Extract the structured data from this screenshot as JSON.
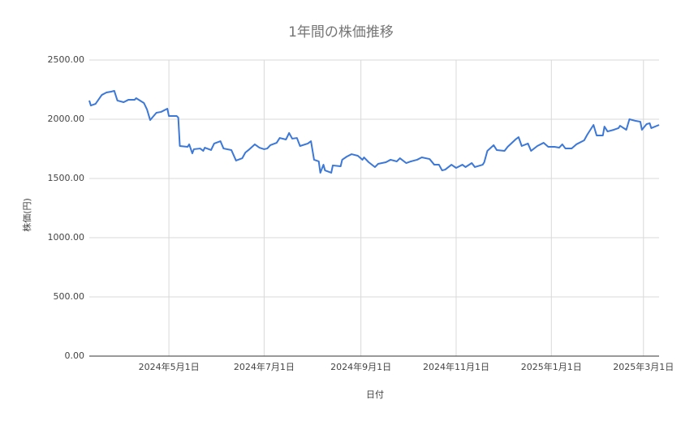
{
  "chart_data": {
    "type": "line",
    "title": "1年間の株価推移",
    "x_label": "日付",
    "y_label": "株価(円)",
    "x": [
      "2024-03-11",
      "2024-03-12",
      "2024-03-15",
      "2024-03-19",
      "2024-03-22",
      "2024-03-25",
      "2024-03-27",
      "2024-03-29",
      "2024-04-02",
      "2024-04-05",
      "2024-04-09",
      "2024-04-10",
      "2024-04-15",
      "2024-04-17",
      "2024-04-19",
      "2024-04-23",
      "2024-04-26",
      "2024-04-30",
      "2024-05-01",
      "2024-05-06",
      "2024-05-07",
      "2024-05-08",
      "2024-05-13",
      "2024-05-14",
      "2024-05-16",
      "2024-05-17",
      "2024-05-21",
      "2024-05-23",
      "2024-05-24",
      "2024-05-28",
      "2024-05-30",
      "2024-06-03",
      "2024-06-05",
      "2024-06-10",
      "2024-06-13",
      "2024-06-17",
      "2024-06-19",
      "2024-06-21",
      "2024-06-25",
      "2024-06-28",
      "2024-07-01",
      "2024-07-03",
      "2024-07-05",
      "2024-07-09",
      "2024-07-11",
      "2024-07-15",
      "2024-07-17",
      "2024-07-19",
      "2024-07-22",
      "2024-07-24",
      "2024-07-29",
      "2024-07-31",
      "2024-08-02",
      "2024-08-05",
      "2024-08-06",
      "2024-08-08",
      "2024-08-09",
      "2024-08-13",
      "2024-08-14",
      "2024-08-19",
      "2024-08-20",
      "2024-08-23",
      "2024-08-26",
      "2024-08-30",
      "2024-09-02",
      "2024-09-03",
      "2024-09-06",
      "2024-09-10",
      "2024-09-12",
      "2024-09-17",
      "2024-09-20",
      "2024-09-24",
      "2024-09-26",
      "2024-09-30",
      "2024-10-03",
      "2024-10-07",
      "2024-10-10",
      "2024-10-15",
      "2024-10-18",
      "2024-10-21",
      "2024-10-23",
      "2024-10-25",
      "2024-10-29",
      "2024-11-01",
      "2024-11-05",
      "2024-11-07",
      "2024-11-11",
      "2024-11-13",
      "2024-11-18",
      "2024-11-19",
      "2024-11-21",
      "2024-11-25",
      "2024-11-27",
      "2024-12-02",
      "2024-12-04",
      "2024-12-09",
      "2024-12-11",
      "2024-12-13",
      "2024-12-17",
      "2024-12-19",
      "2024-12-23",
      "2024-12-27",
      "2024-12-30",
      "2025-01-03",
      "2025-01-06",
      "2025-01-08",
      "2025-01-10",
      "2025-01-14",
      "2025-01-17",
      "2025-01-22",
      "2025-01-24",
      "2025-01-28",
      "2025-01-30",
      "2025-02-03",
      "2025-02-04",
      "2025-02-06",
      "2025-02-10",
      "2025-02-13",
      "2025-02-14",
      "2025-02-18",
      "2025-02-20",
      "2025-02-24",
      "2025-02-27",
      "2025-02-28",
      "2025-03-03",
      "2025-03-05",
      "2025-03-06",
      "2025-03-11"
    ],
    "values": [
      2158,
      2116,
      2130,
      2205,
      2226,
      2233,
      2240,
      2158,
      2144,
      2164,
      2164,
      2178,
      2137,
      2082,
      1993,
      2055,
      2062,
      2089,
      2027,
      2027,
      2014,
      1774,
      1767,
      1788,
      1712,
      1747,
      1753,
      1733,
      1760,
      1740,
      1795,
      1815,
      1753,
      1740,
      1651,
      1671,
      1719,
      1740,
      1788,
      1760,
      1747,
      1753,
      1781,
      1801,
      1842,
      1829,
      1884,
      1836,
      1842,
      1774,
      1795,
      1815,
      1658,
      1644,
      1548,
      1616,
      1568,
      1548,
      1610,
      1603,
      1658,
      1685,
      1705,
      1692,
      1658,
      1678,
      1637,
      1596,
      1623,
      1637,
      1658,
      1644,
      1671,
      1630,
      1644,
      1658,
      1678,
      1664,
      1616,
      1616,
      1568,
      1575,
      1616,
      1589,
      1616,
      1596,
      1630,
      1596,
      1616,
      1637,
      1733,
      1781,
      1740,
      1733,
      1767,
      1829,
      1849,
      1774,
      1795,
      1733,
      1774,
      1801,
      1767,
      1767,
      1760,
      1788,
      1753,
      1753,
      1788,
      1822,
      1870,
      1952,
      1863,
      1863,
      1938,
      1897,
      1911,
      1925,
      1945,
      1911,
      2000,
      1986,
      1979,
      1911,
      1959,
      1966,
      1925,
      1952
    ],
    "color": "#3c78d8",
    "xlim": [
      "2024-03-11",
      "2025-03-11"
    ],
    "xticks": [
      {
        "value": "2024-05-01",
        "label": "2024年5月1日"
      },
      {
        "value": "2024-07-01",
        "label": "2024年7月1日"
      },
      {
        "value": "2024-09-01",
        "label": "2024年9月1日"
      },
      {
        "value": "2024-11-01",
        "label": "2024年11月1日"
      },
      {
        "value": "2025-01-01",
        "label": "2025年1月1日"
      },
      {
        "value": "2025-03-01",
        "label": "2025年3月1日"
      }
    ],
    "ylim": [
      0,
      2500
    ],
    "yticks": [
      {
        "value": 0,
        "label": "0.00"
      },
      {
        "value": 500,
        "label": "500.00"
      },
      {
        "value": 1000,
        "label": "1000.00"
      },
      {
        "value": 1500,
        "label": "1500.00"
      },
      {
        "value": 2000,
        "label": "2000.00"
      },
      {
        "value": 2500,
        "label": "2500.00"
      }
    ],
    "grid": true
  }
}
